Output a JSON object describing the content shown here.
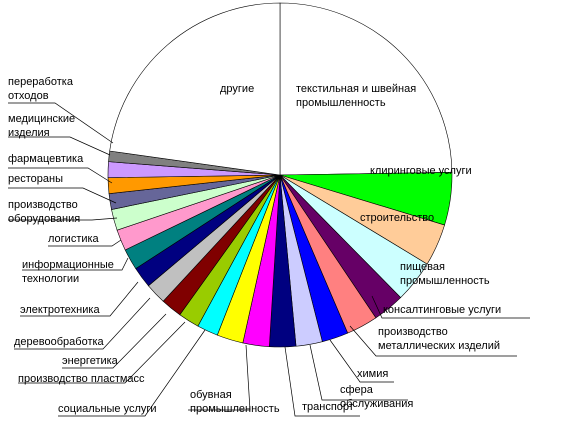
{
  "chart_data": {
    "type": "pie",
    "title": "",
    "colors_note": "slice colors listed per slice",
    "slices": [
      {
        "label": "текстильная и швейная промышленность",
        "value": 25.0,
        "color": "#FFFFFF"
      },
      {
        "label": "клиринговые услуги",
        "value": 5.0,
        "color": "#00FF00"
      },
      {
        "label": "строительство",
        "value": 4.0,
        "color": "#FFCC99"
      },
      {
        "label": "пищевая промышленность",
        "value": 4.0,
        "color": "#CCFFFF"
      },
      {
        "label": "консалтинговые услуги",
        "value": 3.0,
        "color": "#660066"
      },
      {
        "label": "производство металлических изделий",
        "value": 3.0,
        "color": "#FF8080"
      },
      {
        "label": "химия",
        "value": 2.5,
        "color": "#0000FF"
      },
      {
        "label": "сфера обслуживания",
        "value": 2.5,
        "color": "#CCCCFF"
      },
      {
        "label": "транспорт",
        "value": 2.5,
        "color": "#000080"
      },
      {
        "label": "обувная промышленность",
        "value": 2.5,
        "color": "#FF00FF"
      },
      {
        "label": "социальные услуги",
        "value": 2.5,
        "color": "#FFFF00"
      },
      {
        "label": "производство пластмасс",
        "value": 2.0,
        "color": "#00FFFF"
      },
      {
        "label": "энергетика",
        "value": 2.0,
        "color": "#99CC00"
      },
      {
        "label": "деревообработка",
        "value": 2.0,
        "color": "#800000"
      },
      {
        "label": "электротехника",
        "value": 2.0,
        "color": "#C0C0C0"
      },
      {
        "label": "информационные технологии",
        "value": 2.0,
        "color": "#000080"
      },
      {
        "label": "логистика",
        "value": 2.0,
        "color": "#008080"
      },
      {
        "label": "производство оборудования",
        "value": 2.0,
        "color": "#FF99CC"
      },
      {
        "label": "рестораны",
        "value": 2.0,
        "color": "#CCFFCC"
      },
      {
        "label": "фармацевтика",
        "value": 1.5,
        "color": "#666699"
      },
      {
        "label": "",
        "value": 1.5,
        "color": "#FF9900"
      },
      {
        "label": "медицинские изделия",
        "value": 1.5,
        "color": "#CC99FF"
      },
      {
        "label": "переработка отходов",
        "value": 1.0,
        "color": "#808080"
      },
      {
        "label": "другие",
        "value": 23.0,
        "color": "#FFFFFF"
      }
    ]
  }
}
